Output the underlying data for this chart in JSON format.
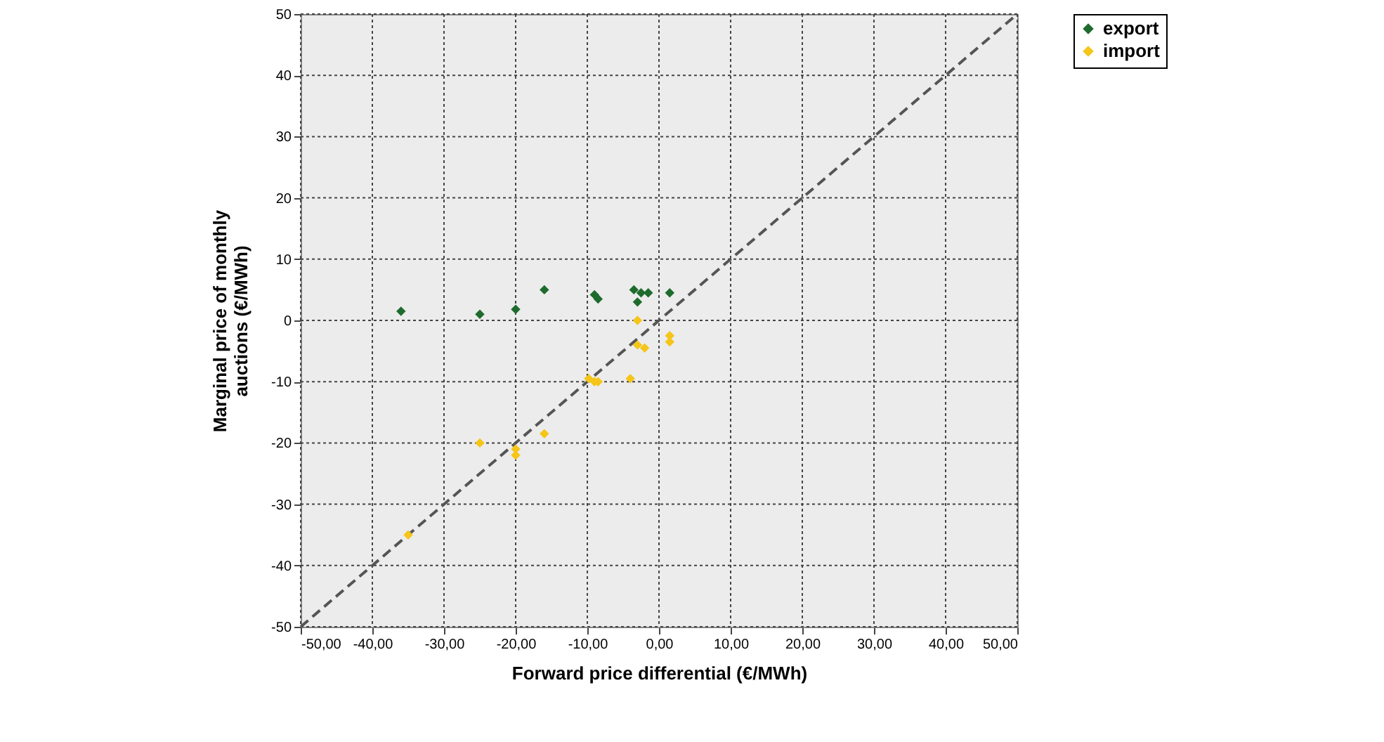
{
  "chart_data": {
    "type": "scatter",
    "xlabel": "Forward price differential  (€/MWh)",
    "ylabel": "Marginal price of monthly auctions (€/MWh)",
    "series": [
      {
        "name": "export",
        "color": "#1e6b2e",
        "x": [
          -36,
          -25,
          -20,
          -16,
          -9,
          -8.5,
          -3.5,
          -3,
          -2.5,
          -1.5,
          1.5
        ],
        "values": [
          1.5,
          1,
          1.8,
          5,
          4.2,
          3.5,
          5,
          3,
          4.5,
          4.5,
          4.5
        ],
        "marker": "diamond"
      },
      {
        "name": "import",
        "color": "#f5c518",
        "x": [
          -3,
          -3,
          -2,
          1.5,
          1.5,
          -9.8,
          -8.5,
          -4,
          -9,
          -25,
          -20,
          -20,
          -16,
          -35
        ],
        "values": [
          0,
          -4,
          -4.5,
          -3.5,
          -2.5,
          -9.5,
          -10,
          -9.5,
          -10,
          -20,
          -22,
          -21,
          -18.5,
          -35
        ],
        "marker": "diamond"
      },
      {
        "type": "line",
        "color": "#555555",
        "x": [
          -50,
          50
        ],
        "values": [
          -50,
          50
        ],
        "line_style": "dashed"
      }
    ],
    "xlim": [
      -50,
      50
    ],
    "ylim": [
      -50,
      50
    ],
    "xticks": [
      {
        "value": -50,
        "label": "-50,00"
      },
      {
        "value": -40,
        "label": "-40,00"
      },
      {
        "value": -30,
        "label": "-30,00"
      },
      {
        "value": -20,
        "label": "-20,00"
      },
      {
        "value": -10,
        "label": "-10,00"
      },
      {
        "value": 0,
        "label": "0,00"
      },
      {
        "value": 10,
        "label": "10,00"
      },
      {
        "value": 20,
        "label": "20,00"
      },
      {
        "value": 30,
        "label": "30,00"
      },
      {
        "value": 40,
        "label": "40,00"
      },
      {
        "value": 50,
        "label": "50,00"
      }
    ],
    "yticks": [
      -50,
      -40,
      -30,
      -20,
      -10,
      0,
      10,
      20,
      30,
      40,
      50
    ],
    "grid": true,
    "legend": "right"
  }
}
